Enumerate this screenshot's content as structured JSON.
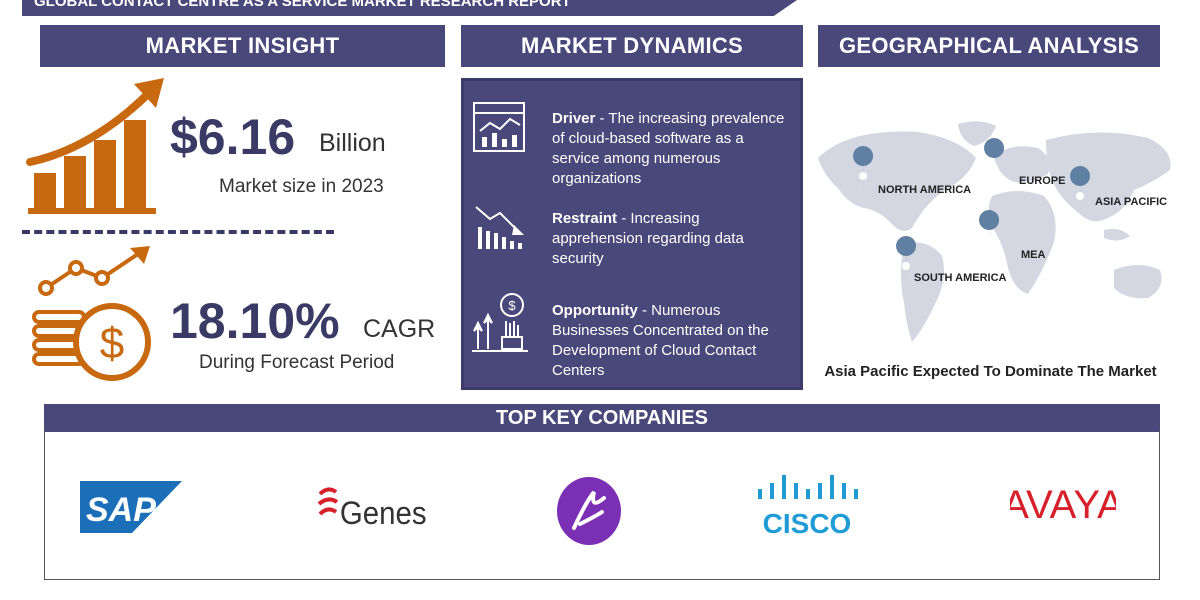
{
  "report_title": "GLOBAL CONTACT CENTRE AS A SERVICE MARKET RESEARCH REPORT",
  "sections": {
    "market_insight": "MARKET INSIGHT",
    "market_dynamics": "MARKET DYNAMICS",
    "geographical_analysis": "GEOGRAPHICAL ANALYSIS",
    "top_key_companies": "TOP KEY COMPANIES"
  },
  "insight": {
    "market_size_value": "$6.16",
    "market_size_unit": "Billion",
    "market_size_caption": "Market size in 2023",
    "cagr_value": "18.10%",
    "cagr_unit": "CAGR",
    "cagr_caption": "During Forecast Period"
  },
  "dynamics": {
    "driver_label": "Driver",
    "driver_text": " - The increasing prevalence of cloud-based software as a service among numerous organizations",
    "restraint_label": "Restraint",
    "restraint_text": " - Increasing apprehension regarding data security",
    "opportunity_label": "Opportunity",
    "opportunity_text": " - Numerous Businesses Concentrated on the Development of Cloud Contact Centers"
  },
  "geography": {
    "regions": [
      "NORTH AMERICA",
      "EUROPE",
      "ASIA PACIFIC",
      "MEA",
      "SOUTH AMERICA"
    ],
    "caption": "Asia Pacific Expected To Dominate The Market",
    "colors": {
      "map": "#d4d6e2",
      "pin": "#5f7fa3"
    }
  },
  "companies": [
    "SAP",
    "Genesys",
    "Alcatel-Lucent",
    "CISCO",
    "AVAYA"
  ],
  "colors": {
    "header": "#48487a",
    "accent_orange": "#c8680f",
    "sap_blue": "#1b6fb8",
    "cisco_blue": "#1f9bd6",
    "avaya_red": "#d8202a",
    "alcatel_purple": "#7b2fb5"
  }
}
